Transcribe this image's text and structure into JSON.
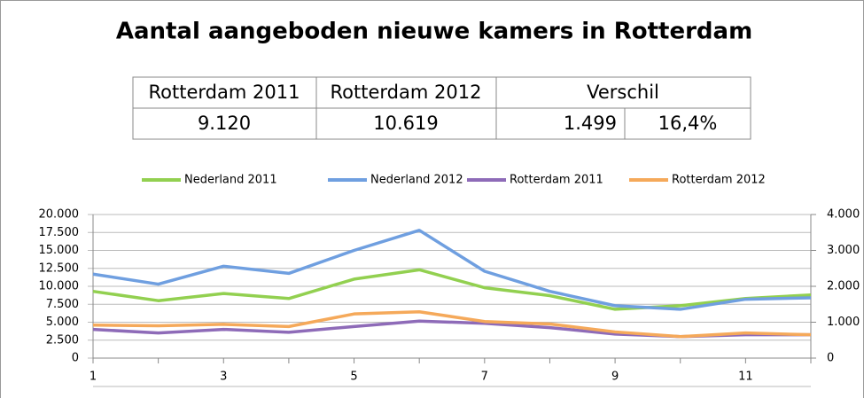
{
  "title": "Aantal aangeboden nieuwe kamers in Rotterdam",
  "table": {
    "header": [
      "Rotterdam 2011",
      "Rotterdam 2012",
      "Verschil"
    ],
    "row": [
      "9.120",
      "10.619",
      "1.499",
      "16,4%"
    ]
  },
  "chart_data": {
    "type": "line",
    "categories": [
      "1",
      null,
      "3",
      null,
      "5",
      null,
      "7",
      null,
      "9",
      null,
      "11",
      null
    ],
    "series": [
      {
        "name": "Nederland 2011",
        "color": "#92d050",
        "values": [
          9300,
          8000,
          9000,
          8300,
          11000,
          12300,
          9800,
          8700,
          6800,
          7300,
          8300,
          8800
        ]
      },
      {
        "name": "Nederland 2012",
        "color": "#6f9fe0",
        "values": [
          11700,
          10300,
          12800,
          11800,
          15000,
          17800,
          12100,
          9300,
          7300,
          6800,
          8200,
          8400
        ]
      },
      {
        "name": "Rotterdam 2011",
        "color": "#8e6bb8",
        "axis": "y2",
        "values": [
          800,
          700,
          800,
          720,
          880,
          1030,
          970,
          850,
          670,
          600,
          650,
          650
        ]
      },
      {
        "name": "Rotterdam 2012",
        "color": "#f5a95a",
        "axis": "y2",
        "values": [
          920,
          900,
          940,
          880,
          1230,
          1290,
          1020,
          950,
          730,
          600,
          700,
          650
        ]
      }
    ],
    "ylim": [
      0,
      20000
    ],
    "yticks": [
      0,
      {
        "value": 2500,
        "label": "2.500"
      },
      {
        "value": 5000,
        "label": "5.000"
      },
      {
        "value": 7500,
        "label": "7.500"
      },
      {
        "value": 10000,
        "label": "10.000"
      },
      {
        "value": 12500,
        "label": "12.500"
      },
      {
        "value": 15000,
        "label": "15.000"
      },
      {
        "value": 17500,
        "label": "17.500"
      },
      {
        "value": 20000,
        "label": "20.000"
      }
    ],
    "y2lim": [
      0,
      4000
    ],
    "y2ticks": [
      0,
      {
        "value": 1000,
        "label": "1.000"
      },
      {
        "value": 2000,
        "label": "2.000"
      },
      {
        "value": 3000,
        "label": "3.000"
      },
      {
        "value": 4000,
        "label": "4.000"
      }
    ],
    "grid": true,
    "legend": "top"
  }
}
